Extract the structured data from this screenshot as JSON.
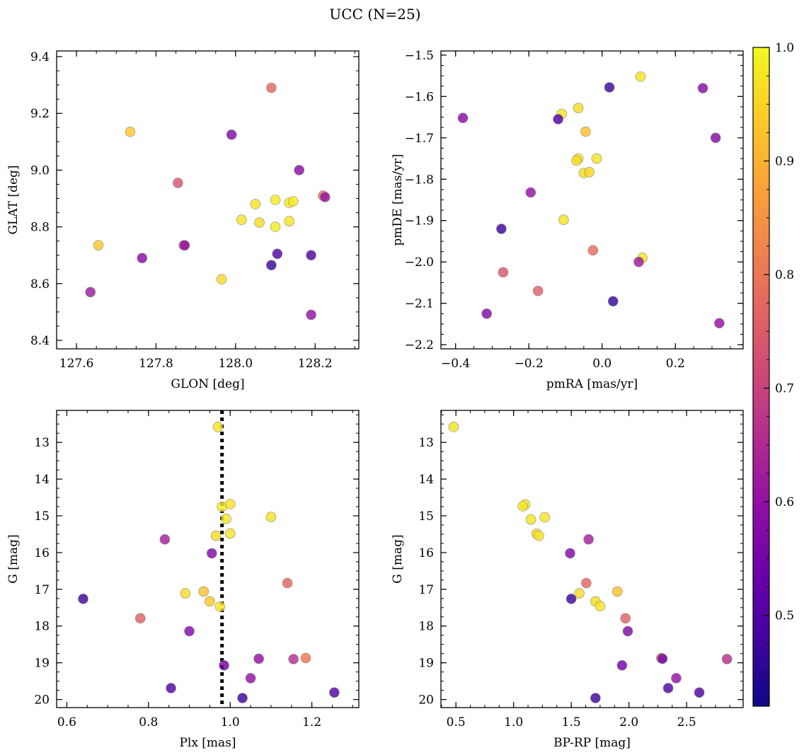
{
  "figure": {
    "title": "UCC (N=25)"
  },
  "colorbar": {
    "vmin": 0.42,
    "vmax": 1.0,
    "ticks": [
      "0.5",
      "0.6",
      "0.7",
      "0.8",
      "0.9",
      "1.0"
    ],
    "tick_values": [
      0.5,
      0.6,
      0.7,
      0.8,
      0.9,
      1.0
    ],
    "colormap": "plasma"
  },
  "chart_data": [
    {
      "type": "scatter",
      "xlabel": "GLON [deg]",
      "ylabel": "GLAT [deg]",
      "xlim": [
        127.55,
        128.31
      ],
      "ylim": [
        8.37,
        9.42
      ],
      "y_inverted": false,
      "xticks": [
        127.6,
        127.8,
        128.0,
        128.2
      ],
      "xtick_labels": [
        "127.6",
        "127.8",
        "128.0",
        "128.2"
      ],
      "yticks": [
        8.4,
        8.6,
        8.8,
        9.0,
        9.2,
        9.4
      ],
      "ytick_labels": [
        "8.4",
        "8.6",
        "8.8",
        "9.0",
        "9.2",
        "9.4"
      ],
      "points": [
        [
          128.09,
          9.29,
          0.77
        ],
        [
          127.735,
          9.135,
          0.93
        ],
        [
          127.99,
          9.125,
          0.57
        ],
        [
          127.855,
          8.955,
          0.74
        ],
        [
          128.16,
          9.0,
          0.58
        ],
        [
          128.22,
          8.91,
          0.8
        ],
        [
          128.225,
          8.905,
          0.6
        ],
        [
          128.05,
          8.88,
          0.97
        ],
        [
          128.1,
          8.895,
          0.98
        ],
        [
          128.135,
          8.885,
          0.97
        ],
        [
          128.145,
          8.89,
          0.98
        ],
        [
          128.015,
          8.825,
          0.97
        ],
        [
          128.06,
          8.815,
          0.96
        ],
        [
          128.135,
          8.82,
          0.97
        ],
        [
          128.1,
          8.8,
          0.98
        ],
        [
          127.655,
          8.735,
          0.93
        ],
        [
          127.87,
          8.735,
          0.76
        ],
        [
          127.872,
          8.735,
          0.6
        ],
        [
          127.765,
          8.69,
          0.58
        ],
        [
          128.105,
          8.705,
          0.5
        ],
        [
          128.09,
          8.665,
          0.47
        ],
        [
          128.19,
          8.7,
          0.5
        ],
        [
          127.965,
          8.615,
          0.96
        ],
        [
          127.635,
          8.57,
          0.62
        ],
        [
          128.19,
          8.49,
          0.6
        ]
      ]
    },
    {
      "type": "scatter",
      "xlabel": "pmRA [mas/yr]",
      "ylabel": "pmDE [mas/yr]",
      "xlim": [
        -0.44,
        0.385
      ],
      "ylim": [
        -2.21,
        -1.49
      ],
      "y_inverted": false,
      "xticks": [
        -0.4,
        -0.2,
        0.0,
        0.2
      ],
      "xtick_labels": [
        "−0.4",
        "−0.2",
        "0.0",
        "0.2"
      ],
      "yticks": [
        -2.2,
        -2.1,
        -2.0,
        -1.9,
        -1.8,
        -1.7,
        -1.6,
        -1.5
      ],
      "ytick_labels": [
        "−2.2",
        "−2.1",
        "−2.0",
        "−1.9",
        "−1.8",
        "−1.7",
        "−1.6",
        "−1.5"
      ],
      "points": [
        [
          0.105,
          -1.552,
          0.97
        ],
        [
          0.02,
          -1.578,
          0.47
        ],
        [
          0.275,
          -1.58,
          0.58
        ],
        [
          -0.065,
          -1.628,
          0.96
        ],
        [
          -0.11,
          -1.642,
          0.97
        ],
        [
          -0.12,
          -1.655,
          0.5
        ],
        [
          -0.38,
          -1.652,
          0.58
        ],
        [
          -0.045,
          -1.685,
          0.92
        ],
        [
          0.31,
          -1.7,
          0.57
        ],
        [
          -0.065,
          -1.75,
          0.97
        ],
        [
          -0.07,
          -1.755,
          0.96
        ],
        [
          -0.015,
          -1.75,
          0.97
        ],
        [
          -0.05,
          -1.785,
          0.96
        ],
        [
          -0.035,
          -1.783,
          0.95
        ],
        [
          -0.195,
          -1.832,
          0.6
        ],
        [
          -0.105,
          -1.898,
          0.97
        ],
        [
          -0.275,
          -1.92,
          0.47
        ],
        [
          -0.025,
          -1.972,
          0.78
        ],
        [
          0.11,
          -1.99,
          0.97
        ],
        [
          0.1,
          -2.0,
          0.62
        ],
        [
          -0.27,
          -2.025,
          0.74
        ],
        [
          -0.175,
          -2.07,
          0.76
        ],
        [
          0.03,
          -2.095,
          0.47
        ],
        [
          -0.315,
          -2.125,
          0.57
        ],
        [
          0.32,
          -2.148,
          0.6
        ]
      ]
    },
    {
      "type": "scatter",
      "xlabel": "Plx [mas]",
      "ylabel": "G [mag]",
      "xlim": [
        0.575,
        1.315
      ],
      "ylim": [
        12.13,
        20.22
      ],
      "y_inverted": true,
      "xticks": [
        0.6,
        0.8,
        1.0,
        1.2
      ],
      "xtick_labels": [
        "0.6",
        "0.8",
        "1.0",
        "1.2"
      ],
      "yticks": [
        13,
        14,
        15,
        16,
        17,
        18,
        19,
        20
      ],
      "ytick_labels": [
        "13",
        "14",
        "15",
        "16",
        "17",
        "18",
        "19",
        "20"
      ],
      "vline": 0.98,
      "points": [
        [
          0.97,
          12.58,
          0.97
        ],
        [
          0.98,
          14.75,
          0.98
        ],
        [
          1.0,
          14.68,
          0.97
        ],
        [
          0.99,
          15.08,
          0.97
        ],
        [
          1.1,
          15.03,
          0.97
        ],
        [
          1.0,
          15.48,
          0.97
        ],
        [
          0.965,
          15.54,
          0.96
        ],
        [
          0.84,
          15.64,
          0.63
        ],
        [
          0.955,
          16.02,
          0.57
        ],
        [
          1.14,
          16.83,
          0.77
        ],
        [
          0.935,
          17.06,
          0.92
        ],
        [
          0.89,
          17.11,
          0.96
        ],
        [
          0.64,
          17.26,
          0.47
        ],
        [
          0.95,
          17.33,
          0.93
        ],
        [
          0.975,
          17.47,
          0.97
        ],
        [
          0.78,
          17.79,
          0.76
        ],
        [
          0.9,
          18.14,
          0.57
        ],
        [
          1.07,
          18.89,
          0.6
        ],
        [
          1.155,
          18.9,
          0.66
        ],
        [
          1.185,
          18.87,
          0.8
        ],
        [
          0.985,
          19.07,
          0.55
        ],
        [
          1.05,
          19.42,
          0.6
        ],
        [
          0.855,
          19.69,
          0.5
        ],
        [
          1.255,
          19.81,
          0.5
        ],
        [
          1.03,
          19.96,
          0.47
        ]
      ]
    },
    {
      "type": "scatter",
      "xlabel": "BP-RP [mag]",
      "ylabel": "G [mag]",
      "xlim": [
        0.37,
        2.99
      ],
      "ylim": [
        12.13,
        20.22
      ],
      "y_inverted": true,
      "xticks": [
        0.5,
        1.0,
        1.5,
        2.0,
        2.5
      ],
      "xtick_labels": [
        "0.5",
        "1.0",
        "1.5",
        "2.0",
        "2.5"
      ],
      "yticks": [
        13,
        14,
        15,
        16,
        17,
        18,
        19,
        20
      ],
      "ytick_labels": [
        "13",
        "14",
        "15",
        "16",
        "17",
        "18",
        "19",
        "20"
      ],
      "points": [
        [
          0.48,
          12.58,
          0.97
        ],
        [
          1.1,
          14.69,
          0.98
        ],
        [
          1.08,
          14.74,
          0.97
        ],
        [
          1.27,
          15.04,
          0.97
        ],
        [
          1.15,
          15.1,
          0.97
        ],
        [
          1.2,
          15.49,
          0.96
        ],
        [
          1.22,
          15.54,
          0.97
        ],
        [
          1.65,
          15.64,
          0.63
        ],
        [
          1.49,
          16.02,
          0.57
        ],
        [
          1.63,
          16.83,
          0.77
        ],
        [
          1.9,
          17.06,
          0.92
        ],
        [
          1.57,
          17.11,
          0.96
        ],
        [
          1.5,
          17.26,
          0.47
        ],
        [
          1.71,
          17.33,
          0.96
        ],
        [
          1.75,
          17.46,
          0.97
        ],
        [
          1.97,
          17.79,
          0.76
        ],
        [
          1.99,
          18.14,
          0.57
        ],
        [
          2.28,
          18.87,
          0.8
        ],
        [
          2.29,
          18.89,
          0.55
        ],
        [
          2.85,
          18.9,
          0.66
        ],
        [
          1.94,
          19.07,
          0.55
        ],
        [
          2.41,
          19.42,
          0.6
        ],
        [
          2.34,
          19.69,
          0.5
        ],
        [
          2.61,
          19.81,
          0.5
        ],
        [
          1.71,
          19.96,
          0.47
        ]
      ]
    }
  ]
}
